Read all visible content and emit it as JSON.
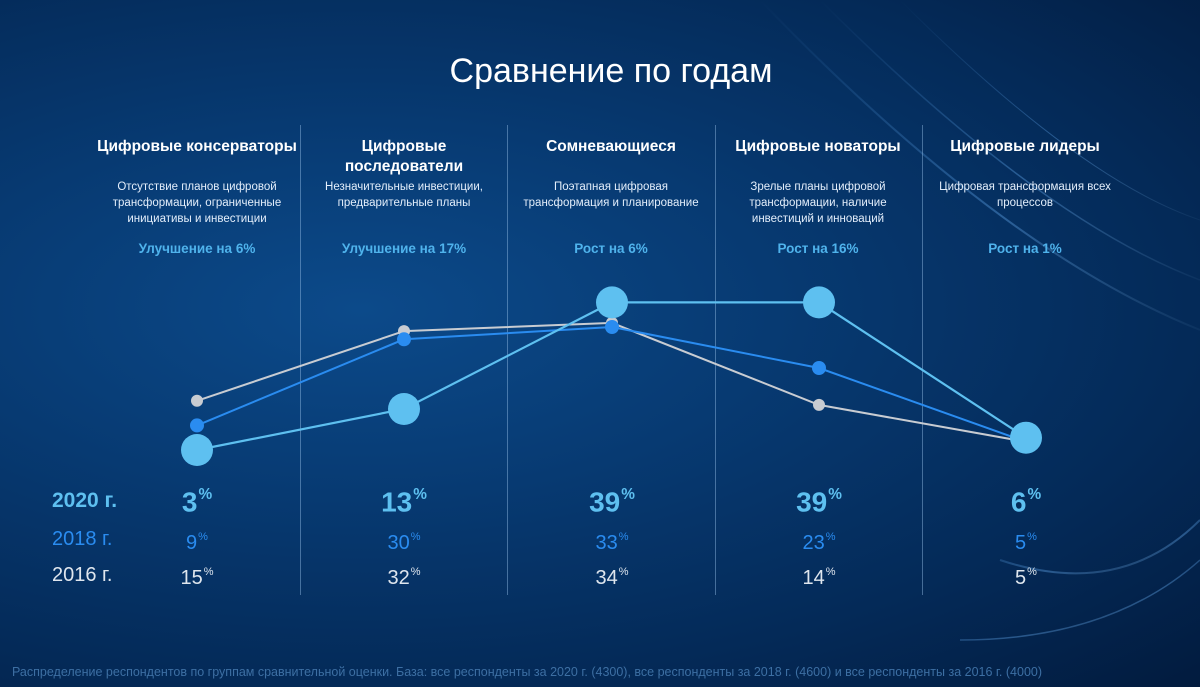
{
  "title": "Сравнение по годам",
  "columns": [
    {
      "title": "Цифровые консерваторы",
      "desc": "Отсутствие планов цифровой трансформации, ограниченные инициативы и инвестиции",
      "growth": "Улучшение на 6%"
    },
    {
      "title": "Цифровые последователи",
      "desc": "Незначительные инвестиции, предварительные планы",
      "growth": "Улучшение на 17%"
    },
    {
      "title": "Сомневающиеся",
      "desc": "Поэтапная цифровая трансформация и планирование",
      "growth": "Рост на 6%"
    },
    {
      "title": "Цифровые новаторы",
      "desc": "Зрелые планы цифровой трансформации, наличие инвестиций и инноваций",
      "growth": "Рост на 16%"
    },
    {
      "title": "Цифровые лидеры",
      "desc": "Цифровая трансформация всех процессов",
      "growth": "Рост на 1%"
    }
  ],
  "rows": [
    {
      "year": "2020 г.",
      "values": [
        "3",
        "13",
        "39",
        "39",
        "6"
      ],
      "color": "#5ec0f0"
    },
    {
      "year": "2018 г.",
      "values": [
        "9",
        "30",
        "33",
        "23",
        "5"
      ],
      "color": "#2a8cf0"
    },
    {
      "year": "2016 г.",
      "values": [
        "15",
        "32",
        "34",
        "14",
        "5"
      ],
      "color": "#c8ccd2"
    }
  ],
  "percent_sign": "%",
  "footnote": "Распределение респондентов по группам сравнительной оценки. База: все респонденты за 2020 г. (4300), все респонденты за 2018 г. (4600) и все респонденты за 2016 г. (4000)",
  "chart_data": {
    "type": "line",
    "title": "Сравнение по годам",
    "categories": [
      "Цифровые консерваторы",
      "Цифровые последователи",
      "Сомневающиеся",
      "Цифровые новаторы",
      "Цифровые лидеры"
    ],
    "series": [
      {
        "name": "2020 г.",
        "values": [
          3,
          13,
          39,
          39,
          6
        ],
        "color": "#5ec0f0"
      },
      {
        "name": "2018 г.",
        "values": [
          9,
          30,
          33,
          23,
          5
        ],
        "color": "#2a8cf0"
      },
      {
        "name": "2016 г.",
        "values": [
          15,
          32,
          34,
          14,
          5
        ],
        "color": "#c8ccd2"
      }
    ],
    "unit": "%",
    "grid": false
  }
}
